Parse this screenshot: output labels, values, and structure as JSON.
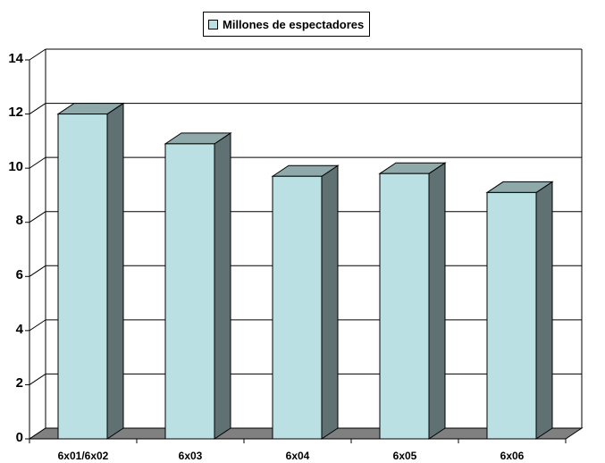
{
  "chart_data": {
    "type": "bar",
    "style": "3d-column",
    "title": "",
    "xlabel": "",
    "ylabel": "",
    "categories": [
      "6x01/6x02",
      "6x03",
      "6x04",
      "6x05",
      "6x06"
    ],
    "series": [
      {
        "name": "Millones de espectadores",
        "values": [
          12.0,
          10.9,
          9.7,
          9.8,
          9.1
        ],
        "color": "#bbe0e3"
      }
    ],
    "ylim": [
      0,
      14
    ],
    "yticks": [
      0,
      2,
      4,
      6,
      8,
      10,
      12,
      14
    ],
    "grid": true,
    "legend_position": "top",
    "colors": {
      "bar_front": "#bbe0e3",
      "bar_top": "#8fa8a9",
      "bar_side": "#5f7172",
      "floor": "#808080"
    }
  },
  "legend": {
    "label": "Millones de espectadores"
  },
  "axis": {
    "y_labels": [
      "0",
      "2",
      "4",
      "6",
      "8",
      "10",
      "12",
      "14"
    ],
    "x_labels": [
      "6x01/6x02",
      "6x03",
      "6x04",
      "6x05",
      "6x06"
    ]
  }
}
